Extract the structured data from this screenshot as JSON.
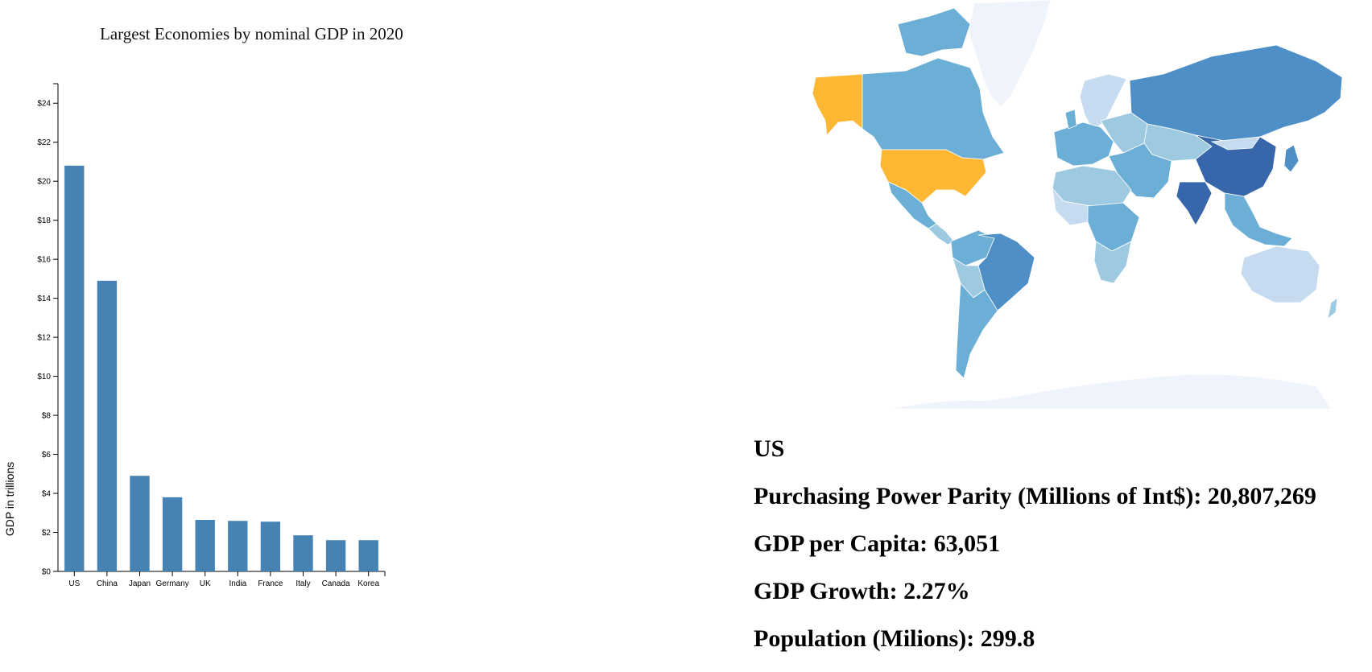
{
  "chart_data": {
    "type": "bar",
    "title": "Largest Economies by nominal GDP in 2020",
    "ylabel": "GDP in trillions",
    "xlabel": "",
    "categories": [
      "US",
      "China",
      "Japan",
      "Germany",
      "UK",
      "India",
      "France",
      "Italy",
      "Canada",
      "Korea"
    ],
    "values": [
      20.8,
      14.9,
      4.9,
      3.8,
      2.64,
      2.59,
      2.55,
      1.85,
      1.6,
      1.6
    ],
    "ylim": [
      0,
      25
    ],
    "yticks": [
      0,
      2,
      4,
      6,
      8,
      10,
      12,
      14,
      16,
      18,
      20,
      22,
      24
    ],
    "ytick_labels": [
      "$0",
      "$2",
      "$4",
      "$6",
      "$8",
      "$10",
      "$12",
      "$14",
      "$16",
      "$18",
      "$20",
      "$22",
      "$24"
    ],
    "grid": false,
    "colors": {
      "bar": "#4682b4"
    }
  },
  "map": {
    "selected_country": "US",
    "colors": {
      "selected": "#fdb733",
      "level1": "#c6dbef",
      "level2": "#9ecae1",
      "level3": "#6baed6",
      "level4": "#4e8fc7",
      "level5": "#3866aa",
      "ice": "#eef3fc"
    }
  },
  "info": {
    "country": "US",
    "ppp_label": "Purchasing Power Parity (Millions of Int$):",
    "ppp_value": "20,807,269",
    "gdp_per_capita_label": "GDP per Capita:",
    "gdp_per_capita_value": "63,051",
    "gdp_growth_label": "GDP Growth:",
    "gdp_growth_value": "2.27%",
    "population_label": "Population (Milions):",
    "population_value": "299.8"
  }
}
